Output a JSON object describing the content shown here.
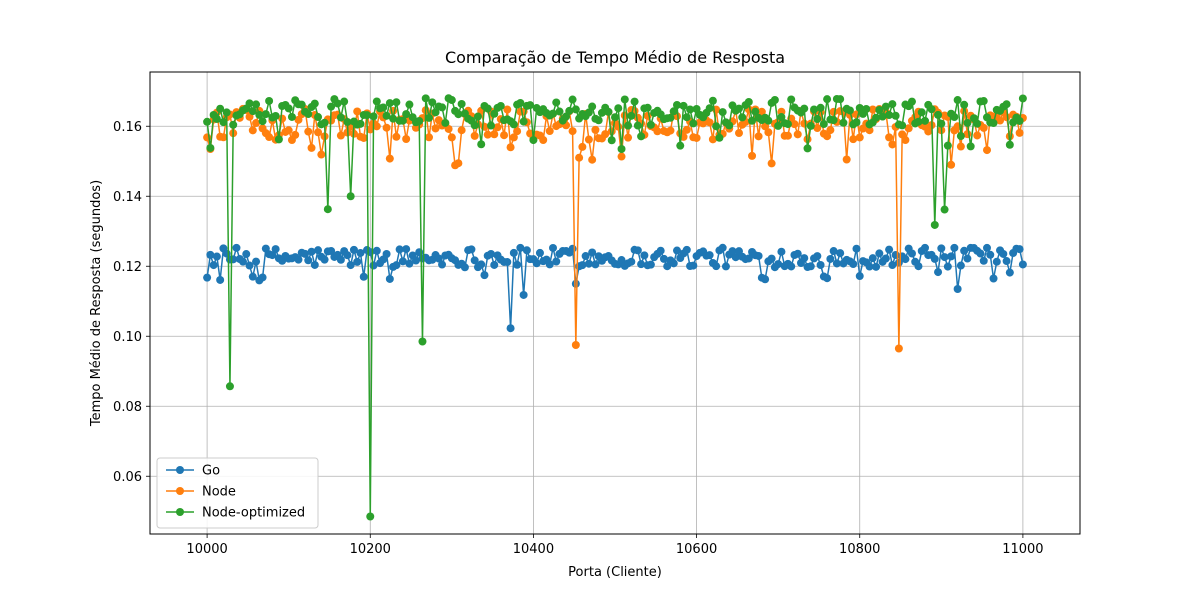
{
  "chart_data": {
    "type": "line",
    "title": "Comparação de Tempo Médio de Resposta",
    "xlabel": "Porta (Cliente)",
    "ylabel": "Tempo Médio de Resposta (segundos)",
    "xlim": [
      9930,
      11070
    ],
    "ylim": [
      0.0435,
      0.1755
    ],
    "xticks": [
      10000,
      10200,
      10400,
      10600,
      10800,
      11000
    ],
    "yticks": [
      0.06,
      0.08,
      0.1,
      0.12,
      0.14,
      0.16
    ],
    "xtick_labels": [
      "10000",
      "10200",
      "10400",
      "10600",
      "10800",
      "11000"
    ],
    "ytick_labels": [
      "0.06",
      "0.08",
      "0.10",
      "0.12",
      "0.14",
      "0.16"
    ],
    "grid": true,
    "legend_position": "lower-left",
    "x_start": 10000,
    "x_step": 4,
    "series": [
      {
        "name": "Go",
        "color": "#1f77b4",
        "baseline": 0.1225,
        "spread": 0.0028,
        "outliers": [
          {
            "x": 10372,
            "y": 0.1023
          },
          {
            "x": 10388,
            "y": 0.1118
          },
          {
            "x": 10452,
            "y": 0.115
          },
          {
            "x": 10920,
            "y": 0.1135
          },
          {
            "x": 10068,
            "y": 0.1168
          },
          {
            "x": 10964,
            "y": 0.1165
          },
          {
            "x": 10192,
            "y": 0.117
          },
          {
            "x": 10800,
            "y": 0.1172
          }
        ]
      },
      {
        "name": "Node",
        "color": "#ff7f0e",
        "baseline": 0.1605,
        "spread": 0.0045,
        "outliers": [
          {
            "x": 10452,
            "y": 0.0975
          },
          {
            "x": 10848,
            "y": 0.0965
          },
          {
            "x": 10004,
            "y": 0.1535
          },
          {
            "x": 10372,
            "y": 0.154
          },
          {
            "x": 10840,
            "y": 0.1548
          },
          {
            "x": 10924,
            "y": 0.1542
          }
        ]
      },
      {
        "name": "Node-optimized",
        "color": "#2ca02c",
        "baseline": 0.164,
        "spread": 0.004,
        "outliers": [
          {
            "x": 10028,
            "y": 0.0857
          },
          {
            "x": 10148,
            "y": 0.1363
          },
          {
            "x": 10176,
            "y": 0.14
          },
          {
            "x": 10200,
            "y": 0.0485
          },
          {
            "x": 10264,
            "y": 0.0985
          },
          {
            "x": 10892,
            "y": 0.1318
          },
          {
            "x": 10904,
            "y": 0.1362
          },
          {
            "x": 10004,
            "y": 0.1538
          },
          {
            "x": 10508,
            "y": 0.1535
          },
          {
            "x": 10924,
            "y": 0.1572
          }
        ]
      }
    ]
  }
}
